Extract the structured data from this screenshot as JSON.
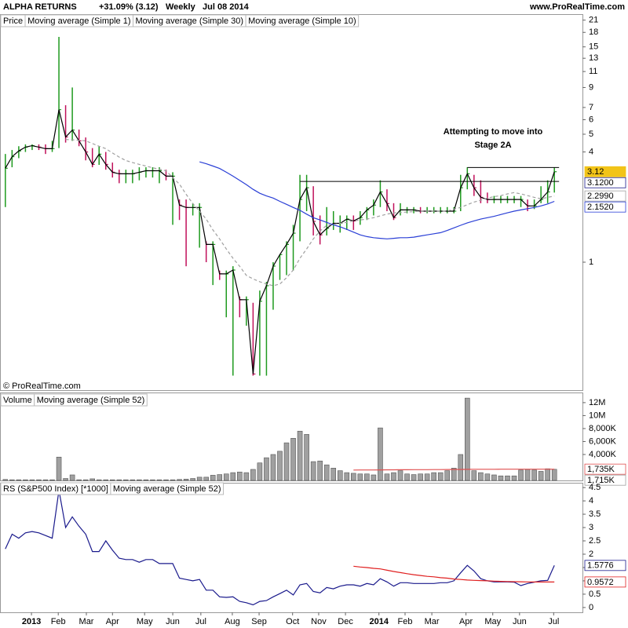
{
  "header": {
    "title": "ALPHA RETURNS",
    "change": "+31.09% (3.12)",
    "period": "Weekly",
    "date": "Jul 08 2014",
    "site": "www.ProRealTime.com",
    "copyright": "© ProRealTime.com"
  },
  "chart_data": [
    {
      "type": "ohlc",
      "log": true,
      "xlim": [
        -0.8,
        86.2
      ],
      "ylim": [
        0.2,
        22.2
      ],
      "yticks": [
        21,
        18,
        15,
        13,
        11,
        9,
        7,
        6,
        5,
        4,
        1
      ],
      "bars": {
        "name": "Price",
        "up_color": "#1e9a1e",
        "down_color": "#c0105a",
        "high": [
          3.9,
          4.1,
          4.3,
          4.4,
          4.4,
          4.4,
          4.4,
          4.6,
          17,
          7.2,
          9.0,
          5.3,
          4.8,
          4.2,
          4.3,
          4.0,
          3.5,
          3.2,
          3.2,
          3.2,
          3.3,
          3.3,
          3.3,
          3.3,
          3.2,
          3.1,
          2.2,
          2.2,
          2.1,
          2.1,
          1.3,
          1.3,
          0.9,
          0.9,
          0.95,
          0.65,
          0.65,
          0.6,
          0.7,
          0.78,
          1.0,
          1.1,
          1.3,
          1.6,
          3.0,
          3.0,
          2.6,
          1.8,
          2.0,
          1.9,
          1.8,
          1.8,
          1.8,
          1.9,
          2.0,
          2.2,
          2.8,
          2.5,
          2.1,
          2.1,
          2.0,
          2.0,
          2.0,
          2.0,
          2.0,
          2.0,
          2.0,
          2.0,
          3.0,
          3.3,
          3.0,
          2.8,
          2.4,
          2.3,
          2.3,
          2.3,
          2.3,
          2.3,
          2.2,
          2.2,
          2.6,
          2.8,
          3.3
        ],
        "low": [
          2.0,
          3.3,
          3.7,
          4.0,
          4.1,
          4.1,
          3.9,
          4.0,
          4.2,
          4.5,
          4.6,
          4.3,
          3.6,
          3.3,
          3.4,
          3.2,
          2.9,
          2.7,
          2.7,
          2.7,
          2.8,
          2.9,
          2.9,
          2.7,
          2.8,
          1.6,
          1.7,
          0.95,
          1.8,
          1.2,
          1.0,
          0.75,
          0.8,
          0.5,
          0.24,
          0.5,
          0.45,
          0.24,
          0.24,
          0.24,
          0.55,
          0.8,
          0.85,
          0.9,
          1.3,
          1.9,
          1.4,
          1.25,
          1.4,
          1.5,
          1.45,
          1.5,
          1.5,
          1.6,
          1.7,
          1.8,
          2.0,
          1.9,
          1.7,
          1.8,
          1.85,
          1.85,
          1.85,
          1.85,
          1.85,
          1.85,
          1.85,
          1.85,
          1.9,
          2.5,
          2.3,
          2.1,
          2.1,
          2.1,
          2.1,
          2.1,
          2.1,
          2.0,
          1.9,
          1.95,
          2.1,
          2.1,
          2.4
        ]
      },
      "series": [
        {
          "name": "Moving average (Simple 1)",
          "color": "#000000",
          "legend_color": "#1a1a8c",
          "values": [
            3.26,
            3.77,
            4.05,
            4.25,
            4.33,
            4.25,
            4.17,
            4.17,
            6.81,
            4.83,
            5.27,
            4.6,
            4.0,
            3.42,
            3.89,
            3.42,
            3.1,
            3.04,
            3.04,
            3.04,
            3.1,
            3.16,
            3.16,
            3.16,
            2.95,
            2.95,
            2.05,
            1.99,
            1.99,
            1.99,
            1.25,
            1.25,
            0.863,
            0.863,
            0.906,
            0.624,
            0.624,
            0.245,
            0.612,
            0.744,
            0.952,
            1.1,
            1.25,
            1.44,
            2.2,
            2.55,
            1.67,
            1.41,
            1.53,
            1.63,
            1.63,
            1.72,
            1.68,
            1.75,
            1.93,
            2.05,
            2.42,
            2.09,
            1.75,
            1.93,
            1.93,
            1.93,
            1.9,
            1.9,
            1.9,
            1.9,
            1.9,
            1.9,
            2.55,
            3.04,
            2.55,
            2.26,
            2.2,
            2.2,
            2.2,
            2.2,
            2.2,
            2.2,
            2.03,
            2.03,
            2.2,
            2.42,
            3.12
          ]
        },
        {
          "name": "Moving average (Simple 30)",
          "color": "#2a3fd6",
          "values": [
            null,
            null,
            null,
            null,
            null,
            null,
            null,
            null,
            null,
            null,
            null,
            null,
            null,
            null,
            null,
            null,
            null,
            null,
            null,
            null,
            null,
            null,
            null,
            null,
            null,
            null,
            null,
            null,
            null,
            3.53,
            3.45,
            3.35,
            3.25,
            3.1,
            2.95,
            2.8,
            2.65,
            2.5,
            2.38,
            2.3,
            2.24,
            2.15,
            2.07,
            1.99,
            1.92,
            1.83,
            1.75,
            1.7,
            1.65,
            1.6,
            1.56,
            1.51,
            1.46,
            1.41,
            1.38,
            1.36,
            1.35,
            1.34,
            1.35,
            1.36,
            1.36,
            1.37,
            1.39,
            1.41,
            1.43,
            1.45,
            1.49,
            1.54,
            1.59,
            1.64,
            1.68,
            1.72,
            1.75,
            1.78,
            1.82,
            1.86,
            1.9,
            1.93,
            1.96,
            1.99,
            2.03,
            2.08,
            2.15
          ]
        },
        {
          "name": "Moving average (Simple 10)",
          "color": "#a0a0a0",
          "dash": true,
          "values": [
            null,
            null,
            null,
            null,
            null,
            null,
            null,
            null,
            null,
            4.68,
            4.66,
            4.63,
            4.6,
            4.45,
            4.3,
            4.17,
            3.95,
            3.75,
            3.59,
            3.5,
            3.42,
            3.35,
            3.28,
            3.22,
            3.16,
            2.9,
            2.67,
            2.35,
            2.09,
            1.9,
            1.72,
            1.5,
            1.34,
            1.18,
            1.05,
            0.95,
            0.846,
            0.81,
            0.782,
            0.76,
            0.744,
            0.76,
            0.822,
            0.906,
            1.05,
            1.18,
            1.34,
            1.48,
            1.59,
            1.61,
            1.63,
            1.65,
            1.68,
            1.7,
            1.72,
            1.75,
            1.79,
            1.83,
            1.86,
            1.87,
            1.88,
            1.89,
            1.9,
            1.9,
            1.9,
            1.9,
            1.9,
            1.95,
            1.99,
            2.06,
            2.13,
            2.18,
            2.24,
            2.28,
            2.31,
            2.36,
            2.4,
            2.36,
            2.31,
            2.26,
            2.22,
            2.26,
            2.299
          ]
        }
      ],
      "tags": [
        {
          "value": 3.12,
          "label": "3.12",
          "color": "#000000",
          "fill": "#f2c418"
        },
        {
          "value": 3.12,
          "label": "3.1200",
          "color": "#1a1a8c"
        },
        {
          "value": 2.299,
          "label": "2.2990",
          "color": "#a0a0a0"
        },
        {
          "value": 2.152,
          "label": "2.1520",
          "color": "#2a3fd6"
        }
      ],
      "levels": [
        {
          "value": 2.76,
          "from": 44,
          "to": 82
        },
        {
          "value": 3.29,
          "from": 69,
          "to": 82
        }
      ],
      "annotation": [
        "Attempting to move into",
        "Stage 2A"
      ]
    },
    {
      "type": "bar",
      "xlim": [
        -0.8,
        86.2
      ],
      "ylim": [
        0,
        13200000
      ],
      "yticks": [
        {
          "value": 12000000,
          "label": "12M"
        },
        {
          "value": 10000000,
          "label": "10M"
        },
        {
          "value": 8000000,
          "label": "8,000K"
        },
        {
          "value": 6000000,
          "label": "6,000K"
        },
        {
          "value": 4000000,
          "label": "4,000K"
        }
      ],
      "series": [
        {
          "name": "Volume",
          "color": "#a0a0a0",
          "values": [
            150000,
            100000,
            100000,
            100000,
            100000,
            100000,
            100000,
            100000,
            3600000,
            300000,
            850000,
            100000,
            100000,
            250000,
            100000,
            100000,
            100000,
            100000,
            100000,
            100000,
            100000,
            100000,
            100000,
            100000,
            100000,
            100000,
            150000,
            200000,
            300000,
            500000,
            500000,
            800000,
            900000,
            1000000,
            1200000,
            1300000,
            1200000,
            1700000,
            2700000,
            3500000,
            4000000,
            4500000,
            5800000,
            6500000,
            7600000,
            7100000,
            2900000,
            3000000,
            2400000,
            1900000,
            1500000,
            1200000,
            1100000,
            1000000,
            1000000,
            850000,
            8100000,
            1000000,
            1200000,
            1500000,
            1000000,
            900000,
            1000000,
            1000000,
            1200000,
            1200000,
            1500000,
            1900000,
            4000000,
            12700000,
            1500000,
            1200000,
            1000000,
            850000,
            700000,
            700000,
            700000,
            1600000,
            1700000,
            1600000,
            1400000,
            1800000,
            1715000
          ]
        },
        {
          "name": "Moving average (Simple 52)",
          "color": "#e05050",
          "type": "line",
          "values": [
            null,
            null,
            null,
            null,
            null,
            null,
            null,
            null,
            null,
            null,
            null,
            null,
            null,
            null,
            null,
            null,
            null,
            null,
            null,
            null,
            null,
            null,
            null,
            null,
            null,
            null,
            null,
            null,
            null,
            null,
            null,
            null,
            null,
            null,
            null,
            null,
            null,
            null,
            null,
            null,
            null,
            null,
            null,
            null,
            null,
            null,
            null,
            null,
            null,
            null,
            null,
            null,
            1600000,
            1605000,
            1610000,
            1615000,
            1620000,
            1630000,
            1640000,
            1645000,
            1650000,
            1655000,
            1660000,
            1665000,
            1670000,
            1675000,
            1680000,
            1690000,
            1700000,
            1710000,
            1715000,
            1720000,
            1722000,
            1724000,
            1726000,
            1728000,
            1729000,
            1730000,
            1731000,
            1732000,
            1733000,
            1734000,
            1735000
          ]
        }
      ],
      "tags": [
        {
          "value": 1735000,
          "label": "1,735K",
          "color": "#e05050"
        },
        {
          "value": 1715000,
          "label": "1,715K",
          "color": "#a0a0a0"
        }
      ]
    },
    {
      "type": "line",
      "xlim": [
        -0.8,
        86.2
      ],
      "ylim": [
        -0.18,
        4.65
      ],
      "yticks": [
        4.5,
        4,
        3.5,
        3,
        2.5,
        2,
        1.5,
        1,
        0.5,
        0
      ],
      "xticks": [
        {
          "value": 3.9,
          "label": "2013"
        },
        {
          "value": 7.9,
          "label": "Feb"
        },
        {
          "value": 12.1,
          "label": "Mar"
        },
        {
          "value": 16,
          "label": "Apr"
        },
        {
          "value": 20.8,
          "label": "May"
        },
        {
          "value": 25,
          "label": "Jun"
        },
        {
          "value": 29.2,
          "label": "Jul"
        },
        {
          "value": 33.9,
          "label": "Aug"
        },
        {
          "value": 37.9,
          "label": "Sep"
        },
        {
          "value": 42.9,
          "label": "Oct"
        },
        {
          "value": 46.8,
          "label": "Nov"
        },
        {
          "value": 50.8,
          "label": "Dec"
        },
        {
          "value": 55.8,
          "label": "2014"
        },
        {
          "value": 59.7,
          "label": "Feb"
        },
        {
          "value": 63.7,
          "label": "Mar"
        },
        {
          "value": 68.8,
          "label": "Apr"
        },
        {
          "value": 72.8,
          "label": "May"
        },
        {
          "value": 76.8,
          "label": "Jun"
        },
        {
          "value": 81.9,
          "label": "Jul"
        }
      ],
      "series": [
        {
          "name": "RS (S&P500 Index) [*1000]",
          "color": "#1a1a8c",
          "values": [
            2.2,
            2.75,
            2.6,
            2.8,
            2.85,
            2.8,
            2.7,
            2.6,
            4.4,
            3.0,
            3.4,
            3.05,
            2.75,
            2.1,
            2.1,
            2.5,
            2.15,
            1.85,
            1.8,
            1.8,
            1.7,
            1.8,
            1.8,
            1.65,
            1.65,
            1.65,
            1.1,
            1.05,
            1.0,
            1.05,
            0.65,
            0.65,
            0.4,
            0.38,
            0.4,
            0.23,
            0.18,
            0.1,
            0.23,
            0.26,
            0.4,
            0.52,
            0.65,
            0.47,
            0.85,
            0.9,
            0.6,
            0.55,
            0.75,
            0.7,
            0.8,
            0.85,
            0.85,
            0.8,
            0.9,
            0.85,
            1.08,
            0.96,
            0.8,
            0.93,
            0.93,
            0.9,
            0.9,
            0.9,
            0.9,
            0.93,
            0.93,
            1.0,
            1.3,
            1.58,
            1.37,
            1.08,
            1.0,
            0.96,
            0.96,
            0.96,
            0.95,
            0.82,
            0.9,
            0.95,
            1.0,
            1.02,
            1.5776
          ]
        },
        {
          "name": "Moving average (Simple 52)",
          "color": "#e02020",
          "values": [
            null,
            null,
            null,
            null,
            null,
            null,
            null,
            null,
            null,
            null,
            null,
            null,
            null,
            null,
            null,
            null,
            null,
            null,
            null,
            null,
            null,
            null,
            null,
            null,
            null,
            null,
            null,
            null,
            null,
            null,
            null,
            null,
            null,
            null,
            null,
            null,
            null,
            null,
            null,
            null,
            null,
            null,
            null,
            null,
            null,
            null,
            null,
            null,
            null,
            null,
            null,
            null,
            1.55,
            1.52,
            1.5,
            1.47,
            1.45,
            1.4,
            1.35,
            1.31,
            1.27,
            1.23,
            1.2,
            1.17,
            1.15,
            1.12,
            1.1,
            1.07,
            1.05,
            1.03,
            1.02,
            1.01,
            1.0,
            0.99,
            0.98,
            0.975,
            0.97,
            0.965,
            0.96,
            0.958,
            0.956,
            0.957,
            0.9572
          ]
        }
      ],
      "tags": [
        {
          "value": 1.5776,
          "label": "1.5776",
          "color": "#1a1a8c"
        },
        {
          "value": 0.9572,
          "label": "0.9572",
          "color": "#e02020"
        }
      ]
    }
  ]
}
